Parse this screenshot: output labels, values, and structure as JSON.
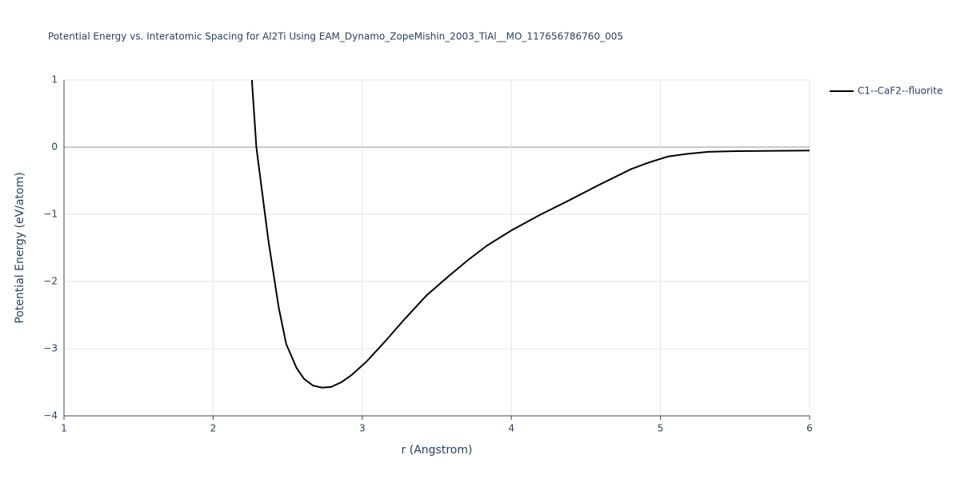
{
  "chart_data": {
    "type": "line",
    "title": "Potential Energy vs. Interatomic Spacing for Al2Ti Using EAM_Dynamo_ZopeMishin_2003_TiAl__MO_117656786760_005",
    "x_label": "r (Angstrom)",
    "y_label": "Potential Energy (eV/atom)",
    "x": [
      2.26,
      2.29,
      2.32,
      2.37,
      2.44,
      2.49,
      2.56,
      2.61,
      2.67,
      2.73,
      2.79,
      2.86,
      2.93,
      3.03,
      3.15,
      3.28,
      3.43,
      3.58,
      3.71,
      3.84,
      4.0,
      4.19,
      4.38,
      4.59,
      4.8,
      4.92,
      5.05,
      5.18,
      5.32,
      5.51,
      6.0
    ],
    "series": [
      {
        "name": "C1--CaF2--fluorite",
        "color": "#000000",
        "values": [
          1.0,
          0.0,
          -0.52,
          -1.38,
          -2.39,
          -2.93,
          -3.29,
          -3.45,
          -3.55,
          -3.58,
          -3.57,
          -3.5,
          -3.39,
          -3.19,
          -2.9,
          -2.57,
          -2.21,
          -1.92,
          -1.68,
          -1.46,
          -1.24,
          -1.01,
          -0.8,
          -0.56,
          -0.33,
          -0.23,
          -0.14,
          -0.1,
          -0.07,
          -0.06,
          -0.05
        ]
      }
    ],
    "xlim": [
      1,
      6
    ],
    "ylim": [
      -4,
      1
    ],
    "xticks": [
      1,
      2,
      3,
      4,
      5,
      6
    ],
    "yticks": [
      {
        "value": -4,
        "label": "−4"
      },
      {
        "value": -3,
        "label": "−3"
      },
      {
        "value": -2,
        "label": "−2"
      },
      {
        "value": -1,
        "label": "−1"
      },
      0,
      1
    ],
    "grid": true,
    "legend": "right"
  }
}
